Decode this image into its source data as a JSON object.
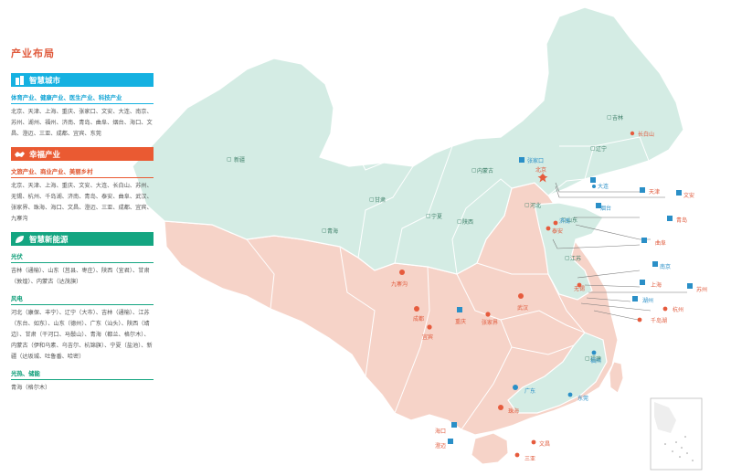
{
  "title": "产业布局",
  "sections": [
    {
      "key": "smart_city",
      "header": "智慧城市",
      "color": "#15b1e1",
      "icon": "building-icon",
      "groups": [
        {
          "title": "体育产业、健康产业、医生产业、科技产业",
          "text": "北京、天津、上海、重庆、张家口、文安、大连、南京、苏州、湖州、福州、济南、青岛、曲阜、烟台、海口、文昌、澄迈、三亚、成都、宜宾、东莞"
        }
      ]
    },
    {
      "key": "happiness",
      "header": "幸福产业",
      "color": "#ea5a32",
      "icon": "shaking-hands-icon",
      "groups": [
        {
          "title": "文旅产业、商业产业、美丽乡村",
          "text": "北京、天津、上海、重庆、文安、大连、长白山、苏州、无锡、杭州、千岛湖、济南、青岛、泰安、曲阜、武汉、张家界、珠海、海口、文昌、澄迈、三亚、成都、宜宾、九寨沟"
        }
      ]
    },
    {
      "key": "new_energy",
      "header": "智慧新能源",
      "color": "#14a581",
      "icon": "leaf-icon",
      "groups": [
        {
          "title": "光伏",
          "text": "吉林（通榆）、山东（莒县、枣庄）、陕西（宜君）、甘肃（敦煌）、内蒙古（达茂旗）"
        },
        {
          "title": "风电",
          "text": "河北（康保、丰宁）、辽宁（大市）、吉林（通榆）、江苏（东台、如东）、山东（德州）、广东（汕头）、陕西（靖边）、甘肃（干河口、马鬃山）、青海（都兰、格尔木）、内蒙古（伊和乌素、乌吉尔、杭锦旗）、宁夏（盐池）、新疆（达坂城、吐鲁番、哈密）"
        },
        {
          "title": "光热、储能",
          "text": "青海（格尔木）"
        }
      ]
    }
  ],
  "provinces": [
    "吉林",
    "辽宁",
    "新疆",
    "内蒙古",
    "甘肃",
    "宁夏",
    "陕西",
    "青海",
    "河北",
    "山东",
    "江苏",
    "福建"
  ],
  "cities": {
    "north": [
      "长白山",
      "张家口",
      "北京",
      "天津",
      "大连",
      "烟台",
      "济南",
      "泰安",
      "青岛",
      "曲阜",
      "文安"
    ],
    "east": [
      "南京",
      "上海",
      "苏州",
      "无锡",
      "湖州",
      "杭州",
      "千岛湖"
    ],
    "central": [
      "九寨沟",
      "成都",
      "宜宾",
      "重庆",
      "张家界",
      "武汉"
    ],
    "south": [
      "福州",
      "广东",
      "东莞",
      "珠海",
      "海口",
      "澄迈",
      "文昌",
      "三亚"
    ]
  }
}
